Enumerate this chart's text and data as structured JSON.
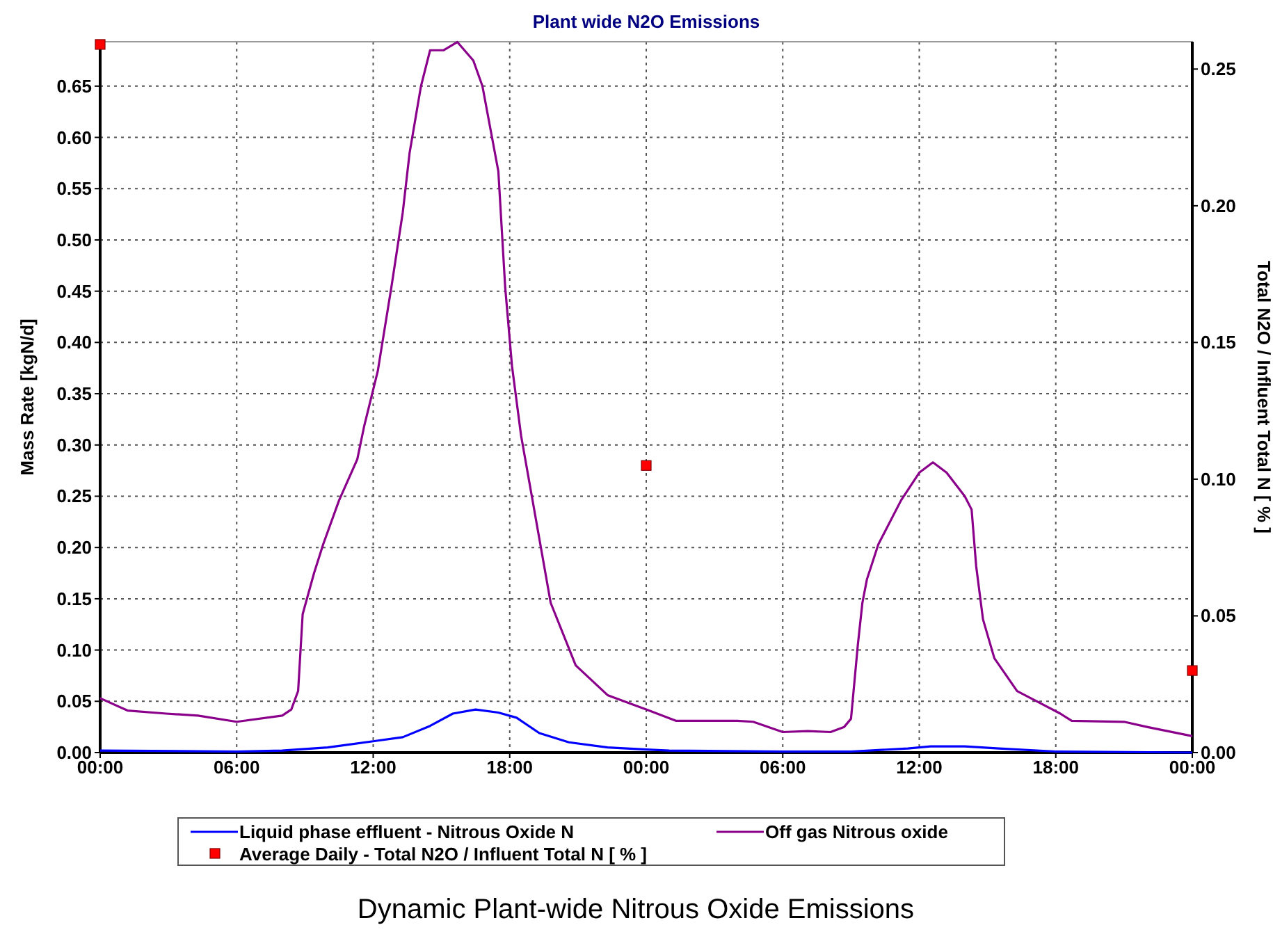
{
  "chart_data": {
    "type": "line",
    "title": "Plant wide N2O Emissions",
    "ylabel": "Mass Rate [kgN/d]",
    "y2label": "Total N2O / Influent Total N [ % ]",
    "xlim": [
      "2000-01-01T00:00",
      "2000-01-03T00:00"
    ],
    "xticks": [
      {
        "value": "2000-01-01T00:00",
        "label": "00:00"
      },
      {
        "value": "2000-01-01T06:00",
        "label": "06:00"
      },
      {
        "value": "2000-01-01T12:00",
        "label": "12:00"
      },
      {
        "value": "2000-01-01T18:00",
        "label": "18:00"
      },
      {
        "value": "2000-01-02T00:00",
        "label": "00:00"
      },
      {
        "value": "2000-01-02T06:00",
        "label": "06:00"
      },
      {
        "value": "2000-01-02T12:00",
        "label": "12:00"
      },
      {
        "value": "2000-01-02T18:00",
        "label": "18:00"
      },
      {
        "value": "2000-01-03T00:00",
        "label": "00:00"
      }
    ],
    "ylim": [
      0,
      0.6933
    ],
    "yticks": [
      {
        "value": 0,
        "label": "0.00"
      },
      {
        "value": 0.05,
        "label": "0.05"
      },
      {
        "value": 0.1,
        "label": "0.10"
      },
      {
        "value": 0.15,
        "label": "0.15"
      },
      {
        "value": 0.2,
        "label": "0.20"
      },
      {
        "value": 0.25,
        "label": "0.25"
      },
      {
        "value": 0.3,
        "label": "0.30"
      },
      {
        "value": 0.35,
        "label": "0.35"
      },
      {
        "value": 0.4,
        "label": "0.40"
      },
      {
        "value": 0.45,
        "label": "0.45"
      },
      {
        "value": 0.5,
        "label": "0.50"
      },
      {
        "value": 0.55,
        "label": "0.55"
      },
      {
        "value": 0.6,
        "label": "0.60"
      },
      {
        "value": 0.65,
        "label": "0.65"
      }
    ],
    "y2lim": [
      0,
      0.26
    ],
    "y2ticks": [
      {
        "value": 0,
        "label": "0.00"
      },
      {
        "value": 0.05,
        "label": "0.05"
      },
      {
        "value": 0.1,
        "label": "0.10"
      },
      {
        "value": 0.15,
        "label": "0.15"
      },
      {
        "value": 0.2,
        "label": "0.20"
      },
      {
        "value": 0.25,
        "label": "0.25"
      }
    ],
    "grid": true,
    "legend": "bottom",
    "marker": "none",
    "series": [
      {
        "name": "Liquid phase effluent - Nitrous Oxide N",
        "color": "#0000ff",
        "x": [
          "2000-01-01T00:00",
          "2000-01-01T06:00",
          "2000-01-01T08:00",
          "2000-01-01T10:00",
          "2000-01-01T12:00",
          "2000-01-01T13:18",
          "2000-01-01T14:30",
          "2000-01-01T15:30",
          "2000-01-01T16:30",
          "2000-01-01T17:30",
          "2000-01-01T18:18",
          "2000-01-01T19:18",
          "2000-01-01T20:36",
          "2000-01-01T22:18",
          "2000-01-02T00:00",
          "2000-01-02T01:00",
          "2000-01-02T06:00",
          "2000-01-02T09:00",
          "2000-01-02T11:30",
          "2000-01-02T12:30",
          "2000-01-02T14:00",
          "2000-01-02T15:30",
          "2000-01-02T18:00",
          "2000-01-03T00:00"
        ],
        "values": [
          0.002,
          0.001,
          0.002,
          0.005,
          0.011,
          0.015,
          0.026,
          0.038,
          0.042,
          0.039,
          0.034,
          0.019,
          0.01,
          0.005,
          0.003,
          0.002,
          0.001,
          0.001,
          0.004,
          0.006,
          0.006,
          0.004,
          0.001,
          0
        ]
      },
      {
        "name": "Off gas Nitrous oxide",
        "color": "#8b008b",
        "x": [
          "2000-01-01T00:00",
          "2000-01-01T01:12",
          "2000-01-01T02:54",
          "2000-01-01T04:18",
          "2000-01-01T06:00",
          "2000-01-01T08:00",
          "2000-01-01T08:24",
          "2000-01-01T08:42",
          "2000-01-01T08:54",
          "2000-01-01T09:24",
          "2000-01-01T09:48",
          "2000-01-01T10:30",
          "2000-01-01T11:18",
          "2000-01-01T11:36",
          "2000-01-01T12:12",
          "2000-01-01T12:48",
          "2000-01-01T13:18",
          "2000-01-01T13:36",
          "2000-01-01T14:06",
          "2000-01-01T14:30",
          "2000-01-01T15:06",
          "2000-01-01T15:42",
          "2000-01-01T16:24",
          "2000-01-01T16:48",
          "2000-01-01T17:30",
          "2000-01-01T17:48",
          "2000-01-01T18:06",
          "2000-01-01T18:30",
          "2000-01-01T18:54",
          "2000-01-01T19:48",
          "2000-01-01T20:54",
          "2000-01-01T22:18",
          "2000-01-02T00:00",
          "2000-01-02T01:18",
          "2000-01-02T04:00",
          "2000-01-02T04:42",
          "2000-01-02T06:00",
          "2000-01-02T07:06",
          "2000-01-02T08:06",
          "2000-01-02T08:42",
          "2000-01-02T09:00",
          "2000-01-02T09:18",
          "2000-01-02T09:30",
          "2000-01-02T09:42",
          "2000-01-02T10:12",
          "2000-01-02T11:12",
          "2000-01-02T12:00",
          "2000-01-02T12:36",
          "2000-01-02T13:12",
          "2000-01-02T14:00",
          "2000-01-02T14:18",
          "2000-01-02T14:30",
          "2000-01-02T14:48",
          "2000-01-02T15:18",
          "2000-01-02T16:18",
          "2000-01-02T18:12",
          "2000-01-02T18:42",
          "2000-01-02T21:00",
          "2000-01-02T22:00",
          "2000-01-03T00:00"
        ],
        "values": [
          0.053,
          0.041,
          0.038,
          0.036,
          0.03,
          0.036,
          0.042,
          0.06,
          0.135,
          0.175,
          0.203,
          0.246,
          0.286,
          0.318,
          0.372,
          0.454,
          0.527,
          0.585,
          0.65,
          0.685,
          0.685,
          0.693,
          0.675,
          0.65,
          0.567,
          0.454,
          0.377,
          0.309,
          0.259,
          0.146,
          0.085,
          0.056,
          0.042,
          0.031,
          0.031,
          0.03,
          0.02,
          0.021,
          0.02,
          0.025,
          0.033,
          0.105,
          0.146,
          0.169,
          0.203,
          0.246,
          0.273,
          0.283,
          0.273,
          0.25,
          0.237,
          0.182,
          0.13,
          0.092,
          0.06,
          0.038,
          0.031,
          0.03,
          0.025,
          0.016
        ]
      },
      {
        "name": "Average Daily - Total N2O / Influent Total N [ % ]",
        "type": "scatter",
        "marker": "square",
        "axis": "y2",
        "color": "#ff0000",
        "x": [
          "2000-01-01T00:00",
          "2000-01-02T00:00",
          "2000-01-03T00:00"
        ],
        "values": [
          0.259,
          0.105,
          0.03
        ]
      }
    ],
    "annotations": [
      "Dynamic Plant-wide Nitrous Oxide Emissions"
    ]
  }
}
